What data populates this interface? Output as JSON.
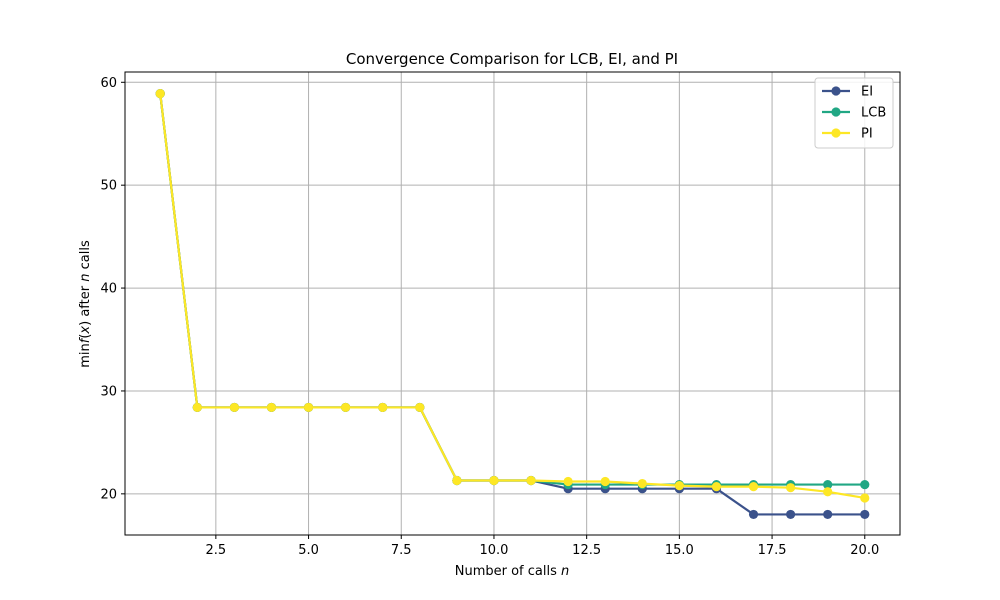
{
  "chart_data": {
    "type": "line",
    "title": "Convergence Comparison for LCB, EI, and PI",
    "xlabel_main": "Number of calls ",
    "xlabel_var": "n",
    "ylabel_parts": {
      "pre": "min",
      "f": "f",
      "mid": "(",
      "x": "x",
      "post": ") after ",
      "n": "n",
      "end": " calls"
    },
    "xlim": [
      0.05,
      20.95
    ],
    "ylim": [
      16.0,
      61.0
    ],
    "xticks": [
      2.5,
      5.0,
      7.5,
      10.0,
      12.5,
      15.0,
      17.5,
      20.0
    ],
    "xtick_labels": [
      "2.5",
      "5.0",
      "7.5",
      "10.0",
      "12.5",
      "15.0",
      "17.5",
      "20.0"
    ],
    "yticks": [
      20,
      30,
      40,
      50,
      60
    ],
    "ytick_labels": [
      "20",
      "30",
      "40",
      "50",
      "60"
    ],
    "grid": true,
    "legend_position": "top-right",
    "x": [
      1,
      2,
      3,
      4,
      5,
      6,
      7,
      8,
      9,
      10,
      11,
      12,
      13,
      14,
      15,
      16,
      17,
      18,
      19,
      20
    ],
    "series": [
      {
        "name": "EI",
        "color": "#3b528b",
        "values": [
          58.9,
          28.4,
          28.4,
          28.4,
          28.4,
          28.4,
          28.4,
          28.4,
          21.3,
          21.3,
          21.3,
          20.5,
          20.5,
          20.5,
          20.5,
          20.5,
          18.0,
          18.0,
          18.0,
          18.0
        ]
      },
      {
        "name": "LCB",
        "color": "#21a784",
        "values": [
          58.9,
          28.4,
          28.4,
          28.4,
          28.4,
          28.4,
          28.4,
          28.4,
          21.3,
          21.3,
          21.3,
          20.9,
          20.9,
          20.9,
          20.9,
          20.9,
          20.9,
          20.9,
          20.9,
          20.9
        ]
      },
      {
        "name": "PI",
        "color": "#fde725",
        "values": [
          58.9,
          28.4,
          28.4,
          28.4,
          28.4,
          28.4,
          28.4,
          28.4,
          21.3,
          21.3,
          21.3,
          21.2,
          21.2,
          21.0,
          20.8,
          20.7,
          20.7,
          20.6,
          20.2,
          19.6
        ]
      }
    ]
  }
}
